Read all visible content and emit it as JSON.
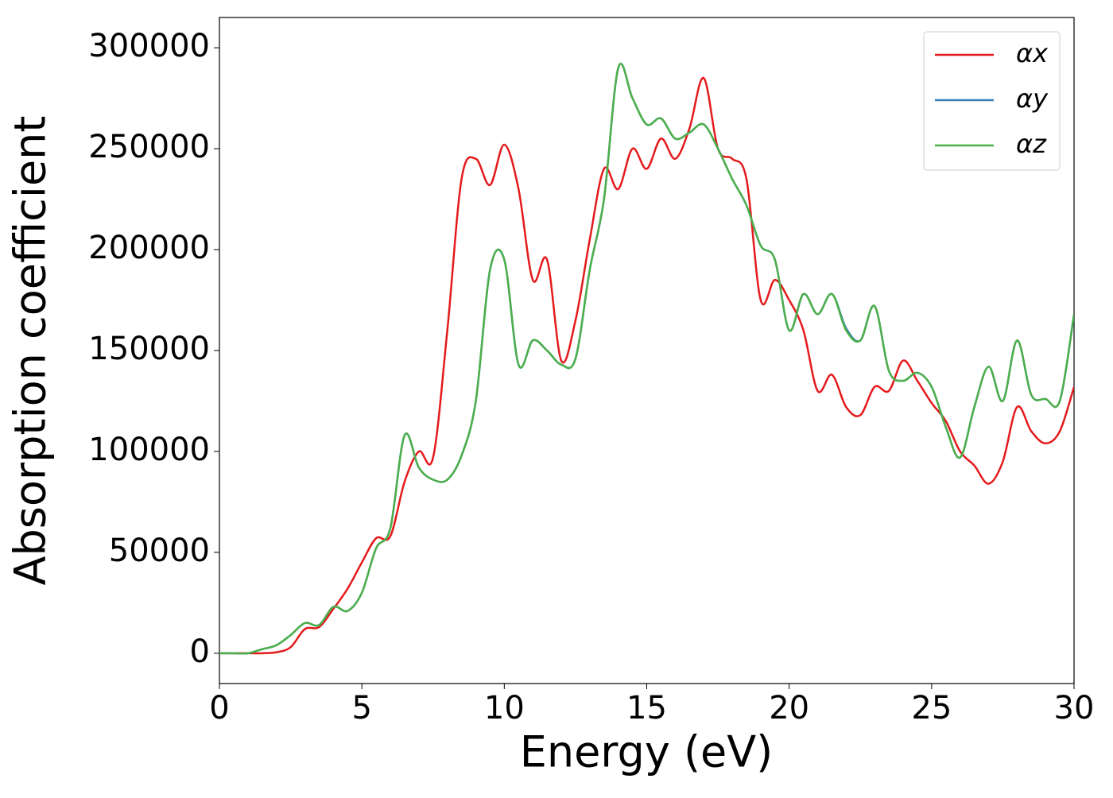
{
  "chart_data": {
    "type": "line",
    "xlabel": "Energy (eV)",
    "ylabel": "Absorption coefficient",
    "x": [
      0,
      0.5,
      1,
      1.5,
      2,
      2.5,
      3,
      3.5,
      4,
      4.5,
      5,
      5.5,
      6,
      6.5,
      7,
      7.5,
      8,
      8.5,
      9,
      9.5,
      10,
      10.5,
      11,
      11.5,
      12,
      12.5,
      13,
      13.5,
      14,
      14.5,
      15,
      15.5,
      16,
      16.5,
      17,
      17.5,
      18,
      18.5,
      19,
      19.5,
      20,
      20.5,
      21,
      21.5,
      22,
      22.5,
      23,
      23.5,
      24,
      24.5,
      25,
      25.5,
      26,
      26.5,
      27,
      27.5,
      28,
      28.5,
      29,
      29.5,
      30
    ],
    "series": [
      {
        "name": "αx",
        "color": "#e41a1c",
        "values": [
          0,
          0,
          0,
          0,
          500,
          3000,
          12000,
          13000,
          22000,
          32000,
          45000,
          57000,
          58000,
          85000,
          100000,
          97000,
          160000,
          235000,
          245000,
          232000,
          252000,
          230000,
          185000,
          195000,
          145000,
          165000,
          205000,
          240000,
          230000,
          250000,
          240000,
          255000,
          245000,
          260000,
          285000,
          250000,
          245000,
          235000,
          175000,
          185000,
          175000,
          160000,
          130000,
          138000,
          122000,
          118000,
          132000,
          130000,
          145000,
          135000,
          124000,
          115000,
          100000,
          93000,
          84000,
          95000,
          122000,
          110000,
          104000,
          110000,
          132000
        ]
      },
      {
        "name": "αy",
        "color": "#377eb8",
        "values": [
          0,
          0,
          0,
          2000,
          4000,
          9000,
          15000,
          14000,
          23000,
          21000,
          30000,
          52000,
          62000,
          108000,
          92000,
          86000,
          86000,
          98000,
          125000,
          190000,
          195000,
          143000,
          155000,
          150000,
          143000,
          146000,
          190000,
          225000,
          290000,
          275000,
          262000,
          265000,
          255000,
          258000,
          262000,
          250000,
          235000,
          222000,
          202000,
          195000,
          160000,
          178000,
          168000,
          178000,
          161000,
          155000,
          172000,
          140000,
          135000,
          139000,
          132000,
          112000,
          97000,
          122000,
          142000,
          125000,
          155000,
          128000,
          126000,
          125000,
          168000
        ]
      },
      {
        "name": "αz",
        "color": "#4daf4a",
        "values": [
          0,
          0,
          0,
          2000,
          4000,
          9000,
          15000,
          14000,
          23000,
          21000,
          30000,
          52000,
          62000,
          108000,
          92000,
          86000,
          86000,
          98000,
          125000,
          190000,
          195000,
          143000,
          155000,
          150000,
          143000,
          146000,
          190000,
          225000,
          290000,
          275000,
          262000,
          265000,
          255000,
          258000,
          262000,
          250000,
          235000,
          222000,
          202000,
          195000,
          160000,
          178000,
          168000,
          178000,
          160000,
          155000,
          172000,
          140000,
          135000,
          139000,
          132000,
          112000,
          97000,
          122000,
          142000,
          125000,
          155000,
          128000,
          126000,
          125000,
          168000
        ]
      }
    ],
    "xlim": [
      0,
      30
    ],
    "xticks": [
      0,
      5,
      10,
      15,
      20,
      25,
      30
    ],
    "ylim": [
      -15000,
      315000
    ],
    "yticks": [
      0,
      50000,
      100000,
      150000,
      200000,
      250000,
      300000
    ],
    "legend": "upper right",
    "grid": false
  }
}
